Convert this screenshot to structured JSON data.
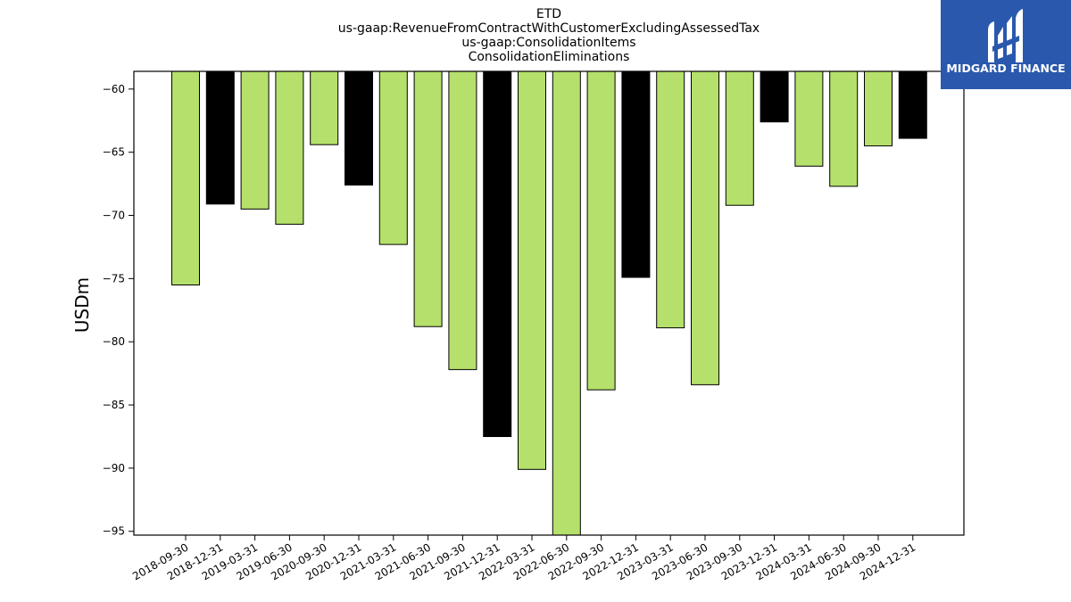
{
  "chart_data": {
    "type": "bar",
    "title_lines": [
      "ETD",
      "us-gaap:RevenueFromContractWithCustomerExcludingAssessedTax",
      "us-gaap:ConsolidationItems",
      "ConsolidationEliminations"
    ],
    "xlabel": "",
    "ylabel": "USDm",
    "ylim": [
      -95.3,
      -58.6
    ],
    "yticks": [
      -60,
      -65,
      -70,
      -75,
      -80,
      -85,
      -90,
      -95
    ],
    "categories": [
      "2018-09-30",
      "2018-12-31",
      "2019-03-31",
      "2019-06-30",
      "2020-09-30",
      "2020-12-31",
      "2021-03-31",
      "2021-06-30",
      "2021-09-30",
      "2021-12-31",
      "2022-03-31",
      "2022-06-30",
      "2022-09-30",
      "2022-12-31",
      "2023-03-31",
      "2023-06-30",
      "2023-09-30",
      "2023-12-31",
      "2024-03-31",
      "2024-06-30",
      "2024-09-30",
      "2024-12-31"
    ],
    "values": [
      -75.5,
      -69.1,
      -69.5,
      -70.7,
      -64.4,
      -67.6,
      -72.3,
      -78.8,
      -82.2,
      -87.5,
      -90.1,
      -95.3,
      -83.8,
      -74.9,
      -78.9,
      -83.4,
      -69.2,
      -62.6,
      -66.1,
      -67.7,
      -64.5,
      -63.9
    ],
    "bar_colors": [
      "#b5e06b",
      "#000000",
      "#b5e06b",
      "#b5e06b",
      "#b5e06b",
      "#000000",
      "#b5e06b",
      "#b5e06b",
      "#b5e06b",
      "#000000",
      "#b5e06b",
      "#b5e06b",
      "#b5e06b",
      "#000000",
      "#b5e06b",
      "#b5e06b",
      "#b5e06b",
      "#000000",
      "#b5e06b",
      "#b5e06b",
      "#b5e06b",
      "#000000"
    ],
    "grid": false,
    "legend": "none"
  },
  "logo": {
    "text": "MIDGARD FINANCE",
    "background": "#2a58ad",
    "icon": "midgard-logo-icon"
  }
}
